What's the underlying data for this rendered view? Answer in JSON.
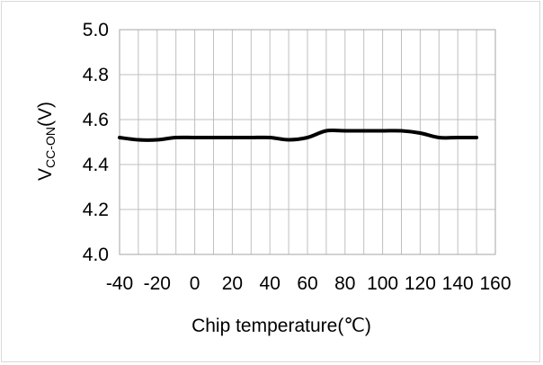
{
  "chart_data": {
    "type": "line",
    "xlabel": "Chip temperature(℃)",
    "ylabel_main": "V",
    "ylabel_sub": "CC-ON",
    "ylabel_tail": "(V)",
    "xlim": [
      -40,
      160
    ],
    "ylim": [
      4.0,
      5.0
    ],
    "x_ticks": [
      -40,
      -20,
      0,
      20,
      40,
      60,
      80,
      100,
      120,
      140,
      160
    ],
    "y_ticks": [
      4.0,
      4.2,
      4.4,
      4.6,
      4.8,
      5.0
    ],
    "x_tick_labels": [
      "-40",
      "-20",
      "0",
      "20",
      "40",
      "60",
      "80",
      "100",
      "120",
      "140",
      "160"
    ],
    "y_tick_labels": [
      "4.0",
      "4.2",
      "4.4",
      "4.6",
      "4.8",
      "5.0"
    ],
    "x_grid_step": 10,
    "grid": true,
    "series": [
      {
        "color": "#000000",
        "x": [
          -40,
          -30,
          -20,
          -10,
          0,
          10,
          20,
          30,
          40,
          50,
          60,
          70,
          80,
          90,
          100,
          110,
          120,
          130,
          140,
          150
        ],
        "y": [
          4.52,
          4.51,
          4.51,
          4.52,
          4.52,
          4.52,
          4.52,
          4.52,
          4.52,
          4.51,
          4.52,
          4.55,
          4.55,
          4.55,
          4.55,
          4.55,
          4.54,
          4.52,
          4.52,
          4.52
        ]
      }
    ]
  }
}
